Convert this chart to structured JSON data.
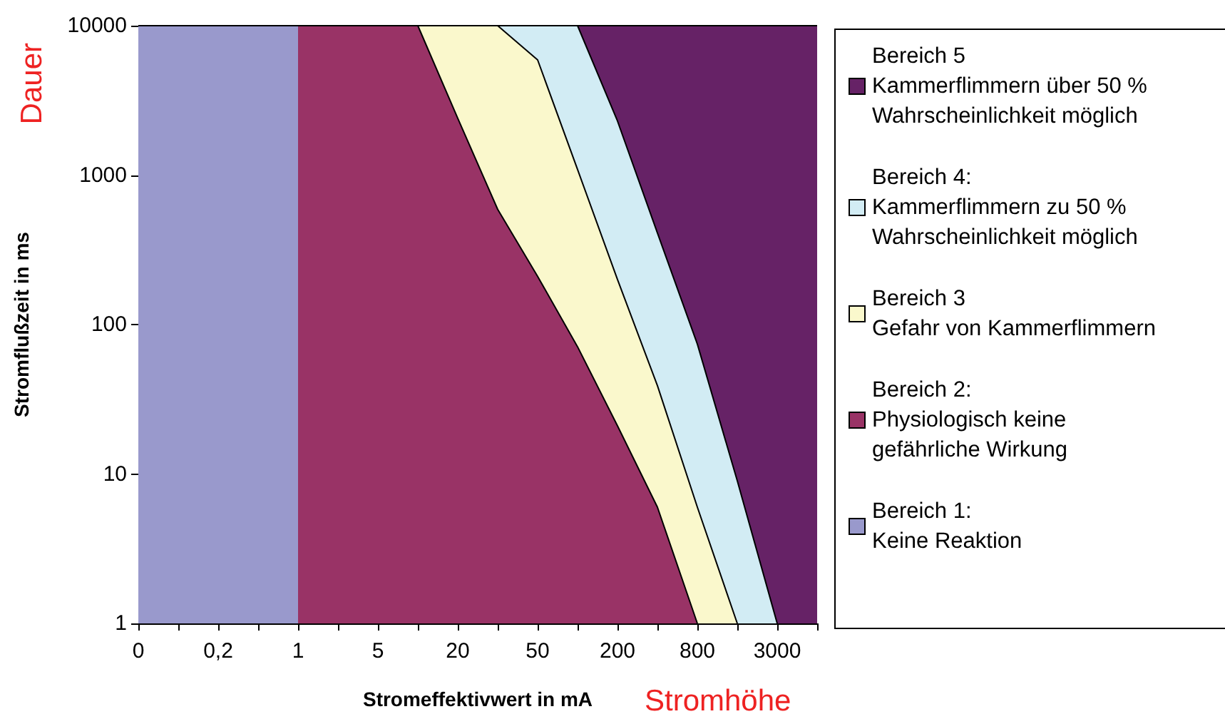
{
  "chart_data": {
    "type": "area",
    "xlabel": "Stromeffektivwert in mA",
    "ylabel": "Stromflußzeit in ms",
    "annotations": [
      "Dauer",
      "Stromhöhe"
    ],
    "categories": [
      "0",
      null,
      "0,2",
      null,
      "1",
      null,
      "5",
      null,
      "20",
      null,
      "50",
      null,
      "200",
      null,
      "800",
      null,
      "3000",
      null
    ],
    "series": [
      {
        "name": "Bereich 5\nKammerflimmern über 50 %\nWahrscheinlichkeit möglich",
        "color": "#662266",
        "values": [
          10000,
          10000,
          10000,
          10000,
          10000,
          10000,
          10000,
          10000,
          10000,
          10000,
          10000,
          10000,
          10000,
          10000,
          10000,
          10000,
          10000,
          10000
        ]
      },
      {
        "name": "Bereich 4:\nKammerflimmern zu 50 %\nWahrscheinlichkeit möglich",
        "color": "#d2ecf4",
        "values": [
          10000,
          10000,
          10000,
          10000,
          10000,
          10000,
          10000,
          10000,
          10000,
          10000,
          10000,
          10000,
          2300,
          410,
          74,
          9,
          1,
          null
        ]
      },
      {
        "name": "Bereich 3\nGefahr von Kammerflimmern",
        "color": "#faf8cc",
        "values": [
          10000,
          10000,
          10000,
          10000,
          10000,
          10000,
          10000,
          10000,
          10000,
          10000,
          5900,
          1090,
          200,
          39,
          6,
          1,
          null,
          null
        ]
      },
      {
        "name": "Bereich 2:\nPhysiologisch keine\ngefährliche Wirkung",
        "color": "#993366",
        "values": [
          10000,
          10000,
          10000,
          10000,
          10000,
          10000,
          10000,
          10000,
          2400,
          590,
          210,
          71,
          21,
          6,
          1,
          null,
          null,
          null
        ]
      },
      {
        "name": "Bereich 1:\nKeine Reaktion",
        "color": "#9999cc",
        "values": [
          10000,
          10000,
          10000,
          10000,
          10000,
          null,
          null,
          null,
          null,
          null,
          null,
          null,
          null,
          null,
          null,
          null,
          null,
          null
        ]
      }
    ],
    "ylim": [
      1,
      10000
    ],
    "yticks": [
      1,
      10,
      100,
      1000,
      10000
    ],
    "log": "y",
    "legend": "right"
  }
}
